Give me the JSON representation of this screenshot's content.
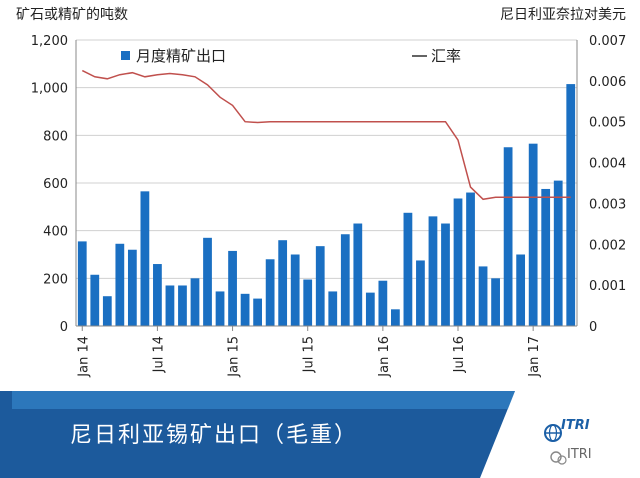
{
  "chart_data": {
    "type": "bar",
    "left_axis_title": "矿石或精矿的吨数",
    "right_axis_title": "尼日利亚奈拉对美元",
    "legend": [
      {
        "name": "月度精矿出口",
        "marker": "■",
        "color": "#1a6fc2"
      },
      {
        "name": "汇率",
        "marker": "—",
        "color": "#c0504d"
      }
    ],
    "x_tick_labels": [
      "Jan 14",
      "Jul 14",
      "Jan 15",
      "Jul 15",
      "Jan 16",
      "Jul 16",
      "Jan 17"
    ],
    "x_tick_months": [
      "2014-01",
      "2014-07",
      "2015-01",
      "2015-07",
      "2016-01",
      "2016-07",
      "2017-01"
    ],
    "months": [
      "2014-01",
      "2014-02",
      "2014-03",
      "2014-04",
      "2014-05",
      "2014-06",
      "2014-07",
      "2014-08",
      "2014-09",
      "2014-10",
      "2014-11",
      "2014-12",
      "2015-01",
      "2015-02",
      "2015-03",
      "2015-04",
      "2015-05",
      "2015-06",
      "2015-07",
      "2015-08",
      "2015-09",
      "2015-10",
      "2015-11",
      "2015-12",
      "2016-01",
      "2016-02",
      "2016-03",
      "2016-04",
      "2016-05",
      "2016-06",
      "2016-07",
      "2016-08",
      "2016-09",
      "2016-10",
      "2016-11",
      "2016-12",
      "2017-01",
      "2017-02",
      "2017-03",
      "2017-04"
    ],
    "left_axis": {
      "ylim": [
        0,
        1200
      ],
      "ticks": [
        "0",
        "200",
        "400",
        "600",
        "800",
        "1,000",
        "1,200"
      ]
    },
    "right_axis": {
      "ylim": [
        0,
        0.007
      ],
      "ticks": [
        "0",
        "0.001",
        "0.002",
        "0.003",
        "0.004",
        "0.005",
        "0.006",
        "0.007"
      ]
    },
    "series": [
      {
        "name": "月度精矿出口",
        "axis": "left",
        "type": "bar",
        "color": "#1a6fc2",
        "values": [
          355,
          215,
          125,
          345,
          320,
          565,
          260,
          170,
          170,
          200,
          370,
          145,
          315,
          135,
          115,
          280,
          360,
          300,
          195,
          335,
          145,
          385,
          430,
          140,
          190,
          70,
          475,
          275,
          460,
          430,
          535,
          560,
          250,
          200,
          750,
          300,
          765,
          575,
          610,
          1015
        ]
      },
      {
        "name": "汇率",
        "axis": "right",
        "type": "line",
        "color": "#c0504d",
        "values": [
          0.00625,
          0.0061,
          0.00605,
          0.00615,
          0.0062,
          0.0061,
          0.00615,
          0.00618,
          0.00615,
          0.0061,
          0.0059,
          0.0056,
          0.0054,
          0.005,
          0.00498,
          0.005,
          0.005,
          0.005,
          0.005,
          0.005,
          0.005,
          0.005,
          0.005,
          0.005,
          0.005,
          0.005,
          0.005,
          0.005,
          0.005,
          0.005,
          0.00455,
          0.0034,
          0.0031,
          0.00315,
          0.00315,
          0.00315,
          0.00315,
          0.00315,
          0.00315,
          0.00315
        ]
      }
    ],
    "grid": "horizontal"
  },
  "banner": {
    "title": "尼日利亚锡矿出口（毛重）",
    "brand": "ITRI",
    "watermark": "ITRI",
    "colors": {
      "dark": "#1c5a9c",
      "light": "#3a8fd6"
    }
  }
}
